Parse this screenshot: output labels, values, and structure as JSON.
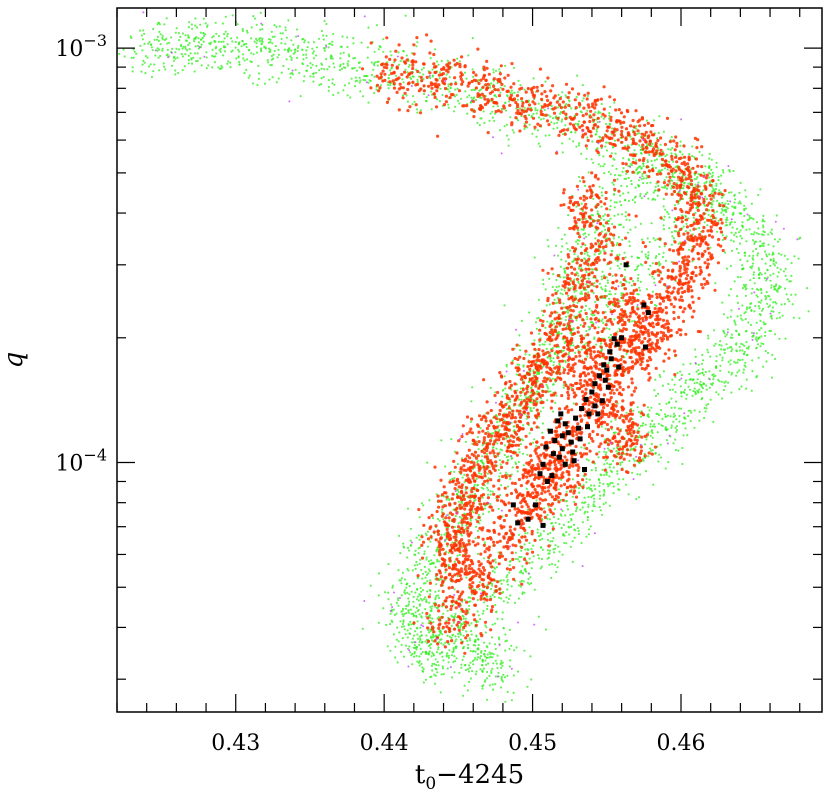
{
  "chart_data": {
    "type": "scatter",
    "title": "",
    "xlabel": "t",
    "xlabel_sub": "0",
    "xlabel_rest": "−4245",
    "ylabel": "q",
    "xlim": [
      0.422,
      0.4695
    ],
    "ylim": [
      2.5e-05,
      0.00125
    ],
    "y_scale": "log",
    "grid": false,
    "legend": "none",
    "x_ticks": [
      {
        "value": 0.43,
        "label": "0.43"
      },
      {
        "value": 0.44,
        "label": "0.44"
      },
      {
        "value": 0.45,
        "label": "0.45"
      },
      {
        "value": 0.46,
        "label": "0.46"
      }
    ],
    "y_ticks": [
      {
        "value": 0.001,
        "base": "10",
        "exp": "−3"
      },
      {
        "value": 0.0001,
        "base": "10",
        "exp": "−4"
      }
    ],
    "colors": {
      "outer_region": "#33ee22",
      "inner_region": "#ff3300",
      "stray_points": "#cc44ff",
      "best_points": "#000000"
    },
    "series": [
      {
        "role": "outer_region",
        "points": [
          [
            0.4245,
            0.00099
          ],
          [
            0.4265,
            0.00101
          ],
          [
            0.4285,
            0.00102
          ],
          [
            0.4305,
            0.00101
          ],
          [
            0.4325,
            0.00099
          ],
          [
            0.4345,
            0.00096
          ],
          [
            0.437,
            0.00093
          ],
          [
            0.4395,
            0.00089
          ],
          [
            0.442,
            0.00085
          ],
          [
            0.4445,
            0.00081
          ],
          [
            0.447,
            0.00077
          ],
          [
            0.4495,
            0.00072
          ],
          [
            0.452,
            0.00068
          ],
          [
            0.4545,
            0.00063
          ],
          [
            0.457,
            0.00058
          ],
          [
            0.4595,
            0.00052
          ],
          [
            0.4615,
            0.00046
          ],
          [
            0.463,
            0.00041
          ],
          [
            0.4645,
            0.00036
          ],
          [
            0.4655,
            0.00031
          ],
          [
            0.4658,
            0.00027
          ],
          [
            0.4655,
            0.00023
          ],
          [
            0.4645,
            0.0002
          ],
          [
            0.463,
            0.000175
          ],
          [
            0.4615,
            0.000155
          ],
          [
            0.46,
            0.00014
          ],
          [
            0.4585,
            0.000125
          ],
          [
            0.457,
            0.00011
          ],
          [
            0.4555,
            9.8e-05
          ],
          [
            0.454,
            8.6e-05
          ],
          [
            0.4525,
            7.4e-05
          ],
          [
            0.451,
            6.4e-05
          ],
          [
            0.449,
            5.5e-05
          ],
          [
            0.447,
            4.8e-05
          ],
          [
            0.4455,
            4.2e-05
          ],
          [
            0.4445,
            3.7e-05
          ],
          [
            0.4475,
            3.2e-05
          ],
          [
            0.4465,
            3.4e-05
          ],
          [
            0.4435,
            3.5e-05
          ],
          [
            0.4425,
            3.7e-05
          ],
          [
            0.442,
            4.1e-05
          ],
          [
            0.4418,
            4.6e-05
          ],
          [
            0.4425,
            5.2e-05
          ],
          [
            0.4435,
            6.1e-05
          ],
          [
            0.4445,
            7e-05
          ],
          [
            0.4455,
            8e-05
          ],
          [
            0.4465,
            9.2e-05
          ],
          [
            0.4475,
            0.000106
          ],
          [
            0.4485,
            0.000122
          ],
          [
            0.4495,
            0.00014
          ],
          [
            0.4505,
            0.00016
          ],
          [
            0.4513,
            0.00018
          ],
          [
            0.452,
            0.00021
          ],
          [
            0.4525,
            0.00024
          ],
          [
            0.453,
            0.00028
          ],
          [
            0.4535,
            0.00033
          ],
          [
            0.4545,
            0.00039
          ],
          [
            0.456,
            0.00045
          ],
          [
            0.4585,
            0.00051
          ],
          [
            0.4615,
            0.00044
          ],
          [
            0.4598,
            0.00036
          ],
          [
            0.4575,
            0.0003
          ],
          [
            0.4555,
            0.00025
          ],
          [
            0.455,
            0.0002
          ]
        ]
      },
      {
        "role": "inner_region",
        "points": [
          [
            0.4445,
            4.2e-05
          ],
          [
            0.4465,
            5.2e-05
          ],
          [
            0.448,
            6.4e-05
          ],
          [
            0.4495,
            7.8e-05
          ],
          [
            0.451,
            9.5e-05
          ],
          [
            0.4525,
            0.000115
          ],
          [
            0.454,
            0.000138
          ],
          [
            0.4555,
            0.000162
          ],
          [
            0.457,
            0.00019
          ],
          [
            0.4585,
            0.00022
          ],
          [
            0.4598,
            0.00026
          ],
          [
            0.4605,
            0.0003
          ],
          [
            0.4612,
            0.00036
          ],
          [
            0.461,
            0.00043
          ],
          [
            0.46,
            0.0005
          ],
          [
            0.458,
            0.00058
          ],
          [
            0.4555,
            0.00064
          ],
          [
            0.453,
            0.00069
          ],
          [
            0.45,
            0.00074
          ],
          [
            0.447,
            0.00079
          ],
          [
            0.444,
            0.00084
          ],
          [
            0.441,
            0.00088
          ],
          [
            0.4535,
            0.00042
          ],
          [
            0.4545,
            0.00033
          ],
          [
            0.4532,
            0.00027
          ],
          [
            0.4523,
            0.00022
          ],
          [
            0.4515,
            0.00019
          ],
          [
            0.4505,
            0.000165
          ],
          [
            0.4495,
            0.000145
          ],
          [
            0.4485,
            0.000128
          ],
          [
            0.4475,
            0.000112
          ],
          [
            0.4465,
            9.8e-05
          ],
          [
            0.4458,
            8.5e-05
          ],
          [
            0.445,
            7.4e-05
          ],
          [
            0.4447,
            6.4e-05
          ],
          [
            0.4448,
            5.5e-05
          ],
          [
            0.4565,
            0.00024
          ],
          [
            0.4575,
            0.000205
          ],
          [
            0.4548,
            0.00019
          ],
          [
            0.4538,
            0.00016
          ],
          [
            0.4558,
            0.00013
          ],
          [
            0.4562,
            0.00011
          ],
          [
            0.4503,
            8.5e-05
          ],
          [
            0.4518,
            9.8e-05
          ]
        ]
      },
      {
        "role": "best_points",
        "points": [
          [
            0.4487,
            7.9e-05
          ],
          [
            0.449,
            7.15e-05
          ],
          [
            0.4497,
            7.3e-05
          ],
          [
            0.4502,
            7.9e-05
          ],
          [
            0.4507,
            7.05e-05
          ],
          [
            0.451,
            9e-05
          ],
          [
            0.4513,
            9.3e-05
          ],
          [
            0.4507,
            9.9e-05
          ],
          [
            0.4518,
            0.000103
          ],
          [
            0.452,
            0.000108
          ],
          [
            0.4515,
            0.000113
          ],
          [
            0.4524,
            0.000118
          ],
          [
            0.4522,
            0.000124
          ],
          [
            0.4526,
            0.000112
          ],
          [
            0.4529,
            0.000128
          ],
          [
            0.4531,
            0.000121
          ],
          [
            0.4527,
            0.000106
          ],
          [
            0.4533,
            0.000135
          ],
          [
            0.4536,
            0.000142
          ],
          [
            0.4538,
            0.000131
          ],
          [
            0.454,
            0.000148
          ],
          [
            0.4542,
            0.000155
          ],
          [
            0.4545,
            0.000162
          ],
          [
            0.4548,
            0.000172
          ],
          [
            0.455,
            0.000167
          ],
          [
            0.4552,
            0.000185
          ],
          [
            0.4555,
            0.000199
          ],
          [
            0.4557,
            0.000193
          ],
          [
            0.456,
            0.0002
          ],
          [
            0.4563,
            0.0003
          ],
          [
            0.4575,
            0.00024
          ],
          [
            0.4578,
            0.00023
          ],
          [
            0.4576,
            0.00019
          ],
          [
            0.4535,
            9.62e-05
          ],
          [
            0.452,
            0.000116
          ],
          [
            0.4517,
            0.000126
          ],
          [
            0.4532,
            0.000114
          ],
          [
            0.4542,
            0.000137
          ],
          [
            0.4547,
            0.000141
          ],
          [
            0.4512,
            0.000119
          ],
          [
            0.4509,
            0.000109
          ],
          [
            0.4522,
            9.9e-05
          ],
          [
            0.4528,
            0.000101
          ],
          [
            0.4537,
            0.000122
          ],
          [
            0.4544,
            0.000131
          ],
          [
            0.4551,
            0.000152
          ],
          [
            0.4558,
            0.00017
          ],
          [
            0.4553,
            0.000178
          ],
          [
            0.4549,
            0.000158
          ],
          [
            0.4505,
            9.4e-05
          ],
          [
            0.4519,
            0.000131
          ],
          [
            0.4514,
            0.000105
          ]
        ]
      }
    ]
  }
}
